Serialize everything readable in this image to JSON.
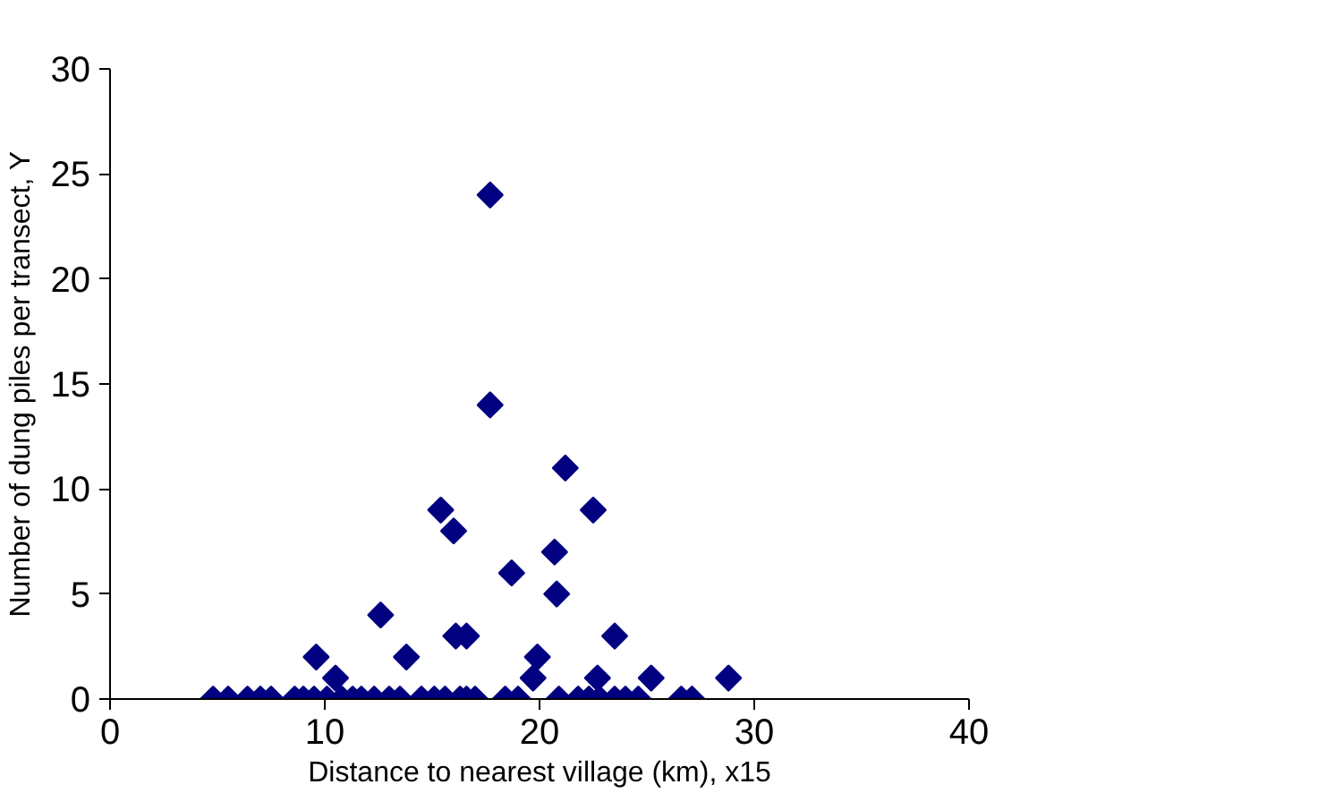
{
  "chart_data": {
    "type": "scatter",
    "xlabel": "Distance to nearest village (km), x15",
    "ylabel": "Number of dung piles per transect, Y",
    "xlim": [
      0,
      40
    ],
    "ylim": [
      0,
      30
    ],
    "xticks": [
      0,
      10,
      20,
      30,
      40
    ],
    "yticks": [
      0,
      5,
      10,
      15,
      20,
      25,
      30
    ],
    "grid": false,
    "marker": "diamond",
    "series": [
      {
        "color": "#000080",
        "x": [
          4.8,
          5.5,
          6.4,
          7.0,
          7.5,
          8.6,
          9.0,
          9.5,
          10.1,
          10.8,
          11.3,
          11.7,
          12.3,
          13.0,
          13.5,
          14.5,
          15.1,
          15.6,
          16.3,
          16.6,
          17.0,
          18.4,
          19.0,
          20.9,
          21.8,
          22.3,
          22.8,
          23.5,
          24.0,
          24.6,
          26.6,
          27.1,
          9.6,
          10.5,
          12.6,
          13.8,
          15.4,
          16.0,
          16.1,
          16.6,
          17.7,
          17.7,
          18.7,
          19.7,
          19.9,
          20.7,
          20.8,
          21.2,
          22.5,
          22.7,
          23.5,
          25.2,
          28.8
        ],
        "values": [
          0,
          0,
          0,
          0,
          0,
          0,
          0,
          0,
          0,
          0,
          0,
          0,
          0,
          0,
          0,
          0,
          0,
          0,
          0,
          0,
          0,
          0,
          0,
          0,
          0,
          0,
          0,
          0,
          0,
          0,
          0,
          0,
          2,
          1,
          4,
          2,
          9,
          8,
          3,
          3,
          24,
          14,
          6,
          1,
          2,
          7,
          5,
          11,
          9,
          1,
          3,
          1,
          1
        ]
      }
    ]
  }
}
